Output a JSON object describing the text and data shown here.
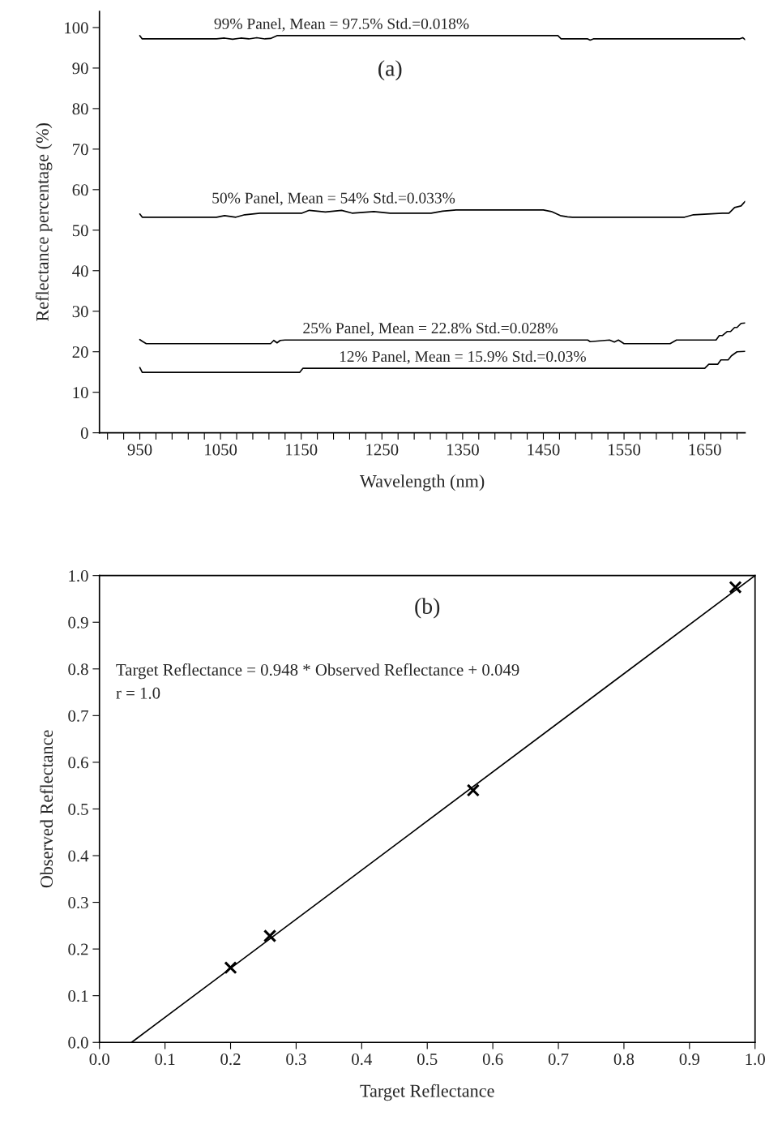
{
  "chart_data": [
    {
      "type": "line",
      "xlabel": "Wavelength (nm)",
      "ylabel": "Reflectance percentage (%)",
      "xlim": [
        900,
        1700
      ],
      "ylim": [
        0,
        104
      ],
      "xticks": [
        {
          "value": 910,
          "label": null
        },
        {
          "value": 930,
          "label": null
        },
        950,
        {
          "value": 970,
          "label": null
        },
        {
          "value": 990,
          "label": null
        },
        {
          "value": 1010,
          "label": null
        },
        {
          "value": 1030,
          "label": null
        },
        1050,
        {
          "value": 1070,
          "label": null
        },
        {
          "value": 1090,
          "label": null
        },
        {
          "value": 1110,
          "label": null
        },
        {
          "value": 1130,
          "label": null
        },
        1150,
        {
          "value": 1170,
          "label": null
        },
        {
          "value": 1190,
          "label": null
        },
        {
          "value": 1210,
          "label": null
        },
        {
          "value": 1230,
          "label": null
        },
        1250,
        {
          "value": 1270,
          "label": null
        },
        {
          "value": 1290,
          "label": null
        },
        {
          "value": 1310,
          "label": null
        },
        {
          "value": 1330,
          "label": null
        },
        1350,
        {
          "value": 1370,
          "label": null
        },
        {
          "value": 1390,
          "label": null
        },
        {
          "value": 1410,
          "label": null
        },
        {
          "value": 1430,
          "label": null
        },
        1450,
        {
          "value": 1470,
          "label": null
        },
        {
          "value": 1490,
          "label": null
        },
        {
          "value": 1510,
          "label": null
        },
        {
          "value": 1530,
          "label": null
        },
        1550,
        {
          "value": 1570,
          "label": null
        },
        {
          "value": 1590,
          "label": null
        },
        {
          "value": 1610,
          "label": null
        },
        {
          "value": 1630,
          "label": null
        },
        1650,
        {
          "value": 1670,
          "label": null
        },
        {
          "value": 1690,
          "label": null
        }
      ],
      "yticks": [
        0,
        10,
        20,
        30,
        40,
        50,
        60,
        70,
        80,
        90,
        100
      ],
      "series": [
        {
          "color": "#000000",
          "x": [
            950,
            953,
            1045,
            1055,
            1065,
            1075,
            1085,
            1095,
            1105,
            1112,
            1120,
            1468,
            1472,
            1505,
            1508,
            1512,
            1693,
            1697,
            1700
          ],
          "values": [
            98.0,
            97.2,
            97.2,
            97.4,
            97.1,
            97.4,
            97.2,
            97.5,
            97.2,
            97.3,
            98.0,
            98.0,
            97.2,
            97.2,
            96.9,
            97.2,
            97.2,
            97.5,
            97.0
          ]
        },
        {
          "color": "#000000",
          "x": [
            950,
            953,
            1045,
            1055,
            1069,
            1080,
            1099,
            1151,
            1160,
            1180,
            1200,
            1213,
            1240,
            1260,
            1311,
            1325,
            1342,
            1450,
            1460,
            1471,
            1480,
            1486,
            1625,
            1636,
            1672,
            1680,
            1687,
            1695,
            1700
          ],
          "values": [
            54.0,
            53.2,
            53.2,
            53.6,
            53.2,
            53.8,
            54.2,
            54.2,
            54.9,
            54.5,
            54.9,
            54.2,
            54.6,
            54.2,
            54.2,
            54.7,
            55.0,
            55.0,
            54.6,
            53.6,
            53.3,
            53.2,
            53.2,
            53.8,
            54.2,
            54.2,
            55.6,
            56.0,
            57.1
          ]
        },
        {
          "color": "#000000",
          "x": [
            950,
            953,
            958,
            1112,
            1116,
            1120,
            1124,
            1130,
            1505,
            1508,
            1532,
            1538,
            1543,
            1550,
            1607,
            1615,
            1664,
            1668,
            1672,
            1678,
            1682,
            1687,
            1690,
            1695,
            1700
          ],
          "values": [
            23.0,
            22.6,
            22.0,
            22.0,
            22.8,
            22.2,
            22.8,
            22.9,
            22.9,
            22.5,
            22.9,
            22.4,
            22.9,
            22.0,
            22.0,
            22.9,
            22.9,
            24.0,
            24.0,
            25.0,
            25.0,
            26.0,
            26.0,
            27.0,
            27.1
          ]
        },
        {
          "color": "#000000",
          "x": [
            950,
            953,
            1148,
            1152,
            1650,
            1655,
            1666,
            1670,
            1679,
            1683,
            1690,
            1700
          ],
          "values": [
            16.1,
            14.9,
            14.9,
            15.9,
            15.9,
            16.9,
            16.9,
            18.0,
            18.0,
            19.0,
            20.0,
            20.1
          ]
        }
      ],
      "annotations": [
        "(a)",
        {
          "text": "99% Panel, Mean = 97.5% Std.=0.018%",
          "x": 1200,
          "y": 98.0
        },
        {
          "text": "50% Panel, Mean = 54% Std.=0.033%",
          "x": 1190,
          "y": 55.0
        },
        {
          "text": "25% Panel, Mean = 22.8% Std.=0.028%",
          "x": 1310,
          "y": 22.9
        },
        {
          "text": "12% Panel, Mean = 15.9% Std.=0.03%",
          "x": 1350,
          "y": 15.9
        }
      ]
    },
    {
      "type": "scatter",
      "xlabel": "Target Reflectance",
      "ylabel": "Observed Reflectance",
      "xlim": [
        0,
        1
      ],
      "ylim": [
        0,
        1
      ],
      "xticks": [
        {
          "value": 0,
          "label": "0.0"
        },
        0.1,
        0.2,
        0.3,
        0.4,
        0.5,
        0.6,
        0.7,
        0.8,
        0.9,
        {
          "value": 1,
          "label": "1.0"
        }
      ],
      "yticks": [
        {
          "value": 0,
          "label": "0.0"
        },
        0.1,
        0.2,
        0.3,
        0.4,
        0.5,
        0.6,
        0.7,
        0.8,
        0.9,
        {
          "value": 1,
          "label": "1.0"
        }
      ],
      "series": [
        {
          "color": "#000000",
          "marker": "cross",
          "x": [
            0.2,
            0.26,
            0.57,
            0.97
          ],
          "values": [
            0.16,
            0.228,
            0.54,
            0.975
          ]
        },
        {
          "type": "line",
          "color": "#000000",
          "x": [
            0.049,
            1.0
          ],
          "values": [
            0.0,
            1.0
          ]
        }
      ],
      "annotations": [
        "(b)",
        "Target Reflectance = 0.948 * Observed Reflectance + 0.049",
        "r = 1.0"
      ]
    }
  ]
}
